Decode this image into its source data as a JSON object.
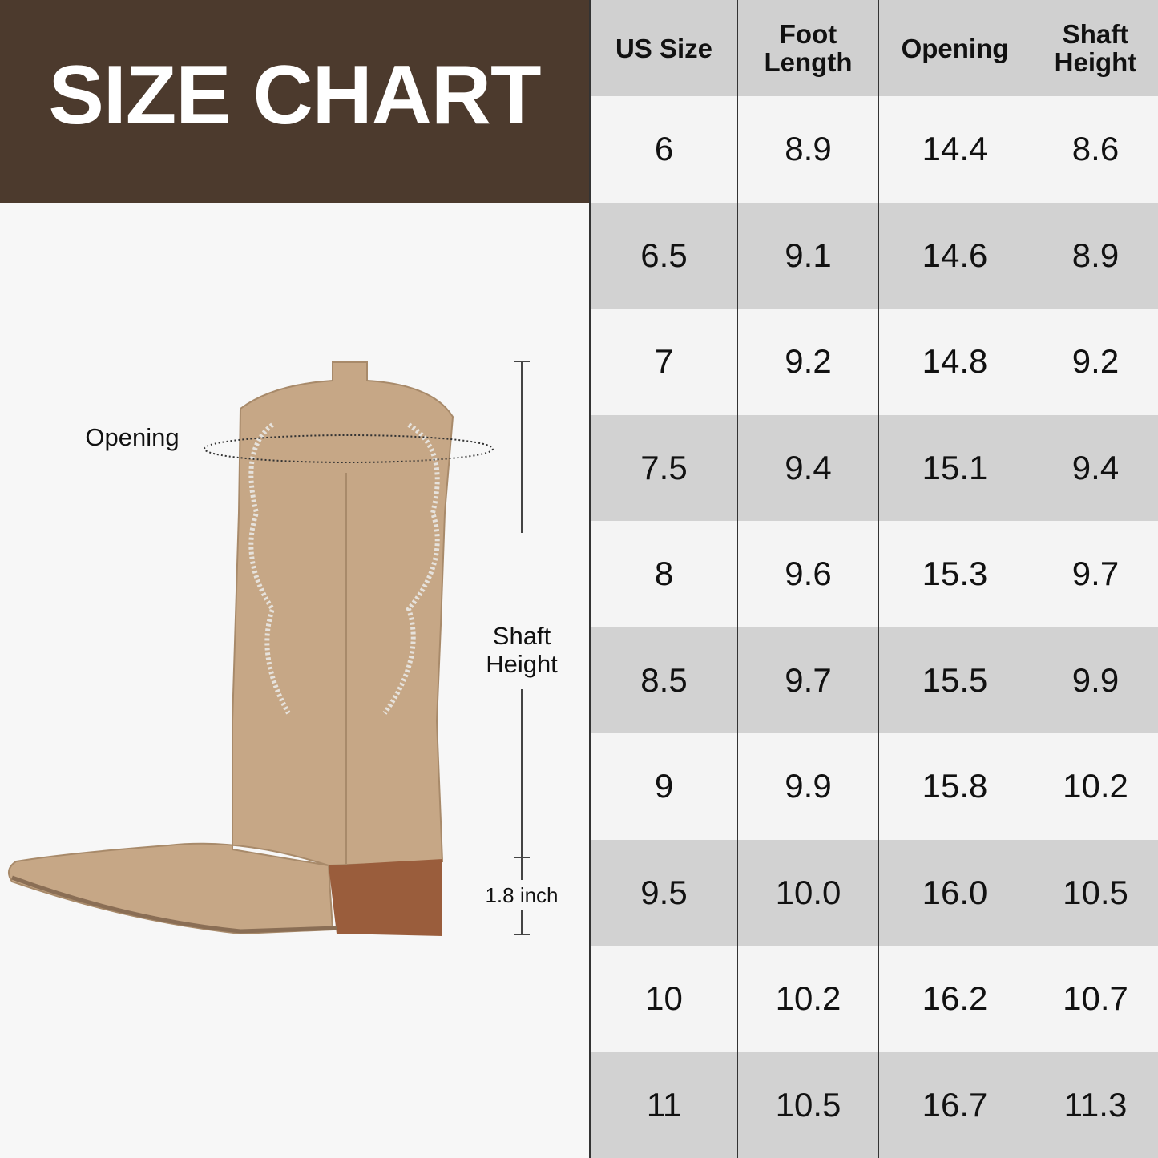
{
  "title": "SIZE CHART",
  "colors": {
    "banner": "#4c3a2d",
    "header_row": "#d0d0d0",
    "row_light": "#f4f4f4",
    "row_dark": "#d2d2d2",
    "boot": "#c4a584",
    "heel": "#9a5d3c"
  },
  "diagram": {
    "opening_label": "Opening",
    "shaft_label_line1": "Shaft",
    "shaft_label_line2": "Height",
    "heel_label": "1.8 inch"
  },
  "table": {
    "headers": [
      [
        "US Size"
      ],
      [
        "Foot",
        "Length"
      ],
      [
        "Opening"
      ],
      [
        "Shaft",
        "Height"
      ]
    ],
    "rows": [
      [
        "6",
        "8.9",
        "14.4",
        "8.6"
      ],
      [
        "6.5",
        "9.1",
        "14.6",
        "8.9"
      ],
      [
        "7",
        "9.2",
        "14.8",
        "9.2"
      ],
      [
        "7.5",
        "9.4",
        "15.1",
        "9.4"
      ],
      [
        "8",
        "9.6",
        "15.3",
        "9.7"
      ],
      [
        "8.5",
        "9.7",
        "15.5",
        "9.9"
      ],
      [
        "9",
        "9.9",
        "15.8",
        "10.2"
      ],
      [
        "9.5",
        "10.0",
        "16.0",
        "10.5"
      ],
      [
        "10",
        "10.2",
        "16.2",
        "10.7"
      ],
      [
        "11",
        "10.5",
        "16.7",
        "11.3"
      ]
    ]
  }
}
